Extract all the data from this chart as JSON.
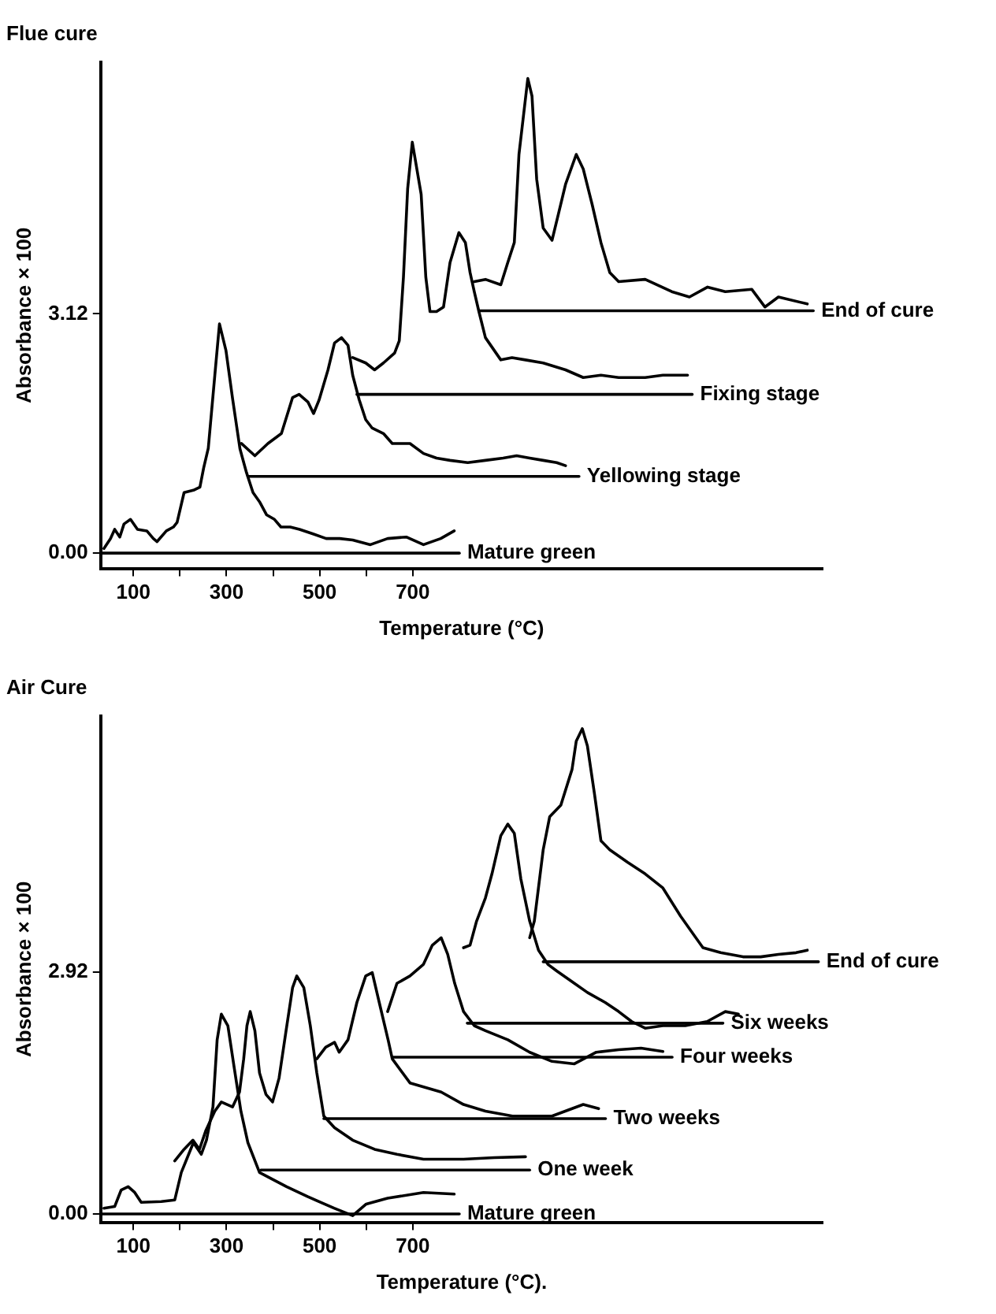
{
  "chart_data": [
    {
      "type": "line",
      "title": "Flue cure",
      "xlabel": "Temperature (°C)",
      "ylabel": "Absorbance × 100",
      "xlim": [
        30,
        1580
      ],
      "xticks": [
        100,
        {
          "value": 200,
          "label": null
        },
        300,
        {
          "value": 400,
          "label": null
        },
        500,
        {
          "value": 600,
          "label": null
        },
        700
      ],
      "ylim": [
        -0.2,
        6.4
      ],
      "yticks": [
        {
          "value": 0,
          "label": "0.00"
        },
        3.12
      ],
      "series": [
        {
          "color": "#000000",
          "x": [
            37,
            51,
            60,
            71,
            80,
            94,
            109,
            129,
            143,
            151,
            171,
            186,
            194,
            209,
            229,
            243,
            251,
            261,
            275,
            285,
            299,
            313,
            329,
            343,
            357,
            371,
            386,
            403,
            417,
            437,
            457,
            486,
            514,
            543,
            571,
            609,
            646,
            686,
            723,
            760,
            789
          ],
          "values": [
            0.06,
            0.19,
            0.31,
            0.21,
            0.38,
            0.44,
            0.31,
            0.29,
            0.19,
            0.15,
            0.29,
            0.34,
            0.4,
            0.79,
            0.82,
            0.86,
            1.11,
            1.37,
            2.32,
            2.99,
            2.64,
            2.02,
            1.36,
            1.05,
            0.79,
            0.67,
            0.5,
            0.44,
            0.34,
            0.34,
            0.31,
            0.25,
            0.19,
            0.19,
            0.17,
            0.11,
            0.19,
            0.21,
            0.11,
            0.19,
            0.29
          ]
        },
        {
          "color": "#000000",
          "x": [
            332,
            361,
            389,
            418,
            442,
            456,
            475,
            487,
            499,
            518,
            532,
            547,
            561,
            571,
            585,
            599,
            613,
            637,
            656,
            694,
            723,
            751,
            780,
            818,
            856,
            894,
            923,
            951,
            980,
            1009,
            1028
          ],
          "values": [
            1.43,
            1.27,
            1.43,
            1.56,
            2.03,
            2.07,
            1.97,
            1.82,
            2.0,
            2.39,
            2.74,
            2.81,
            2.71,
            2.32,
            2.0,
            1.74,
            1.63,
            1.56,
            1.43,
            1.43,
            1.3,
            1.24,
            1.21,
            1.18,
            1.21,
            1.24,
            1.27,
            1.24,
            1.21,
            1.18,
            1.14
          ]
        },
        {
          "color": "#000000",
          "x": [
            571,
            599,
            618,
            637,
            661,
            671,
            680,
            689,
            699,
            718,
            728,
            737,
            751,
            766,
            780,
            799,
            813,
            823,
            832,
            842,
            856,
            889,
            913,
            942,
            980,
            1028,
            1066,
            1104,
            1142,
            1199,
            1237,
            1290
          ],
          "values": [
            2.55,
            2.48,
            2.39,
            2.48,
            2.61,
            2.77,
            3.6,
            4.75,
            5.36,
            4.68,
            3.6,
            3.15,
            3.15,
            3.21,
            3.79,
            4.18,
            4.05,
            3.66,
            3.41,
            3.15,
            2.81,
            2.52,
            2.55,
            2.52,
            2.48,
            2.39,
            2.29,
            2.32,
            2.29,
            2.29,
            2.32,
            2.32
          ]
        },
        {
          "color": "#000000",
          "x": [
            832,
            856,
            889,
            904,
            918,
            928,
            947,
            956,
            966,
            980,
            999,
            1013,
            1028,
            1051,
            1066,
            1085,
            1104,
            1123,
            1142,
            1199,
            1256,
            1294,
            1333,
            1371,
            1428,
            1456,
            1485,
            1547
          ],
          "values": [
            3.54,
            3.57,
            3.5,
            3.79,
            4.05,
            5.2,
            6.19,
            5.96,
            4.88,
            4.24,
            4.08,
            4.43,
            4.81,
            5.2,
            5.01,
            4.55,
            4.05,
            3.66,
            3.54,
            3.57,
            3.41,
            3.34,
            3.47,
            3.41,
            3.44,
            3.21,
            3.34,
            3.25
          ]
        },
        {
          "name": "Mature green",
          "color": "#000000",
          "x": [
            30,
            800
          ],
          "values": [
            0,
            0
          ]
        },
        {
          "name": "Yellowing stage",
          "color": "#000000",
          "x": [
            346,
            1057
          ],
          "values": [
            1.0,
            1.0
          ]
        },
        {
          "name": "Fixing stage",
          "color": "#000000",
          "x": [
            580,
            1300
          ],
          "values": [
            2.07,
            2.07
          ]
        },
        {
          "name": "End of cure",
          "color": "#000000",
          "x": [
            843,
            1560
          ],
          "values": [
            3.16,
            3.16
          ]
        }
      ]
    },
    {
      "type": "line",
      "title": "Air Cure",
      "xlabel": "Temperature (°C).",
      "ylabel": "Absorbance × 100",
      "xlim": [
        30,
        1580
      ],
      "xticks": [
        100,
        {
          "value": 200,
          "label": null
        },
        300,
        {
          "value": 400,
          "label": null
        },
        500,
        {
          "value": 600,
          "label": null
        },
        700
      ],
      "ylim": [
        -0.1,
        6.0
      ],
      "yticks": [
        {
          "value": 0,
          "label": "0.00"
        },
        2.92
      ],
      "series": [
        {
          "color": "#000000",
          "x": [
            37,
            60,
            74,
            89,
            103,
            117,
            160,
            189,
            203,
            229,
            246,
            257,
            271,
            280,
            289,
            303,
            317,
            331,
            346,
            371,
            429,
            474,
            531,
            571,
            600,
            646,
            723,
            789
          ],
          "values": [
            0.07,
            0.09,
            0.29,
            0.33,
            0.26,
            0.14,
            0.15,
            0.17,
            0.5,
            0.86,
            0.72,
            0.89,
            1.29,
            2.1,
            2.41,
            2.27,
            1.75,
            1.24,
            0.86,
            0.5,
            0.33,
            0.21,
            0.07,
            -0.02,
            0.12,
            0.19,
            0.26,
            0.24
          ]
        },
        {
          "color": "#000000",
          "x": [
            189,
            209,
            228,
            242,
            256,
            275,
            289,
            313,
            328,
            337,
            344,
            351,
            361,
            371,
            385,
            399,
            413,
            428,
            442,
            451,
            466,
            480,
            494,
            509,
            532,
            571,
            618,
            666,
            723,
            809,
            875,
            942
          ],
          "values": [
            0.64,
            0.78,
            0.89,
            0.78,
            1.01,
            1.24,
            1.35,
            1.29,
            1.47,
            1.87,
            2.27,
            2.44,
            2.21,
            1.7,
            1.44,
            1.35,
            1.64,
            2.21,
            2.73,
            2.87,
            2.73,
            2.27,
            1.7,
            1.18,
            1.04,
            0.89,
            0.78,
            0.72,
            0.66,
            0.66,
            0.68,
            0.69
          ]
        },
        {
          "color": "#000000",
          "x": [
            494,
            513,
            532,
            542,
            561,
            580,
            599,
            613,
            628,
            647,
            656,
            694,
            761,
            809,
            856,
            914,
            999,
            1066,
            1099
          ],
          "values": [
            1.87,
            2.01,
            2.07,
            1.95,
            2.1,
            2.55,
            2.87,
            2.91,
            2.55,
            2.1,
            1.87,
            1.58,
            1.47,
            1.32,
            1.24,
            1.18,
            1.18,
            1.32,
            1.27
          ]
        },
        {
          "color": "#000000",
          "x": [
            646,
            666,
            694,
            723,
            742,
            761,
            775,
            790,
            809,
            832,
            856,
            904,
            951,
            999,
            1047,
            1094,
            1142,
            1190,
            1237
          ],
          "values": [
            2.44,
            2.78,
            2.87,
            3.01,
            3.24,
            3.33,
            3.13,
            2.78,
            2.44,
            2.27,
            2.21,
            2.1,
            1.95,
            1.84,
            1.81,
            1.95,
            1.98,
            2.0,
            1.96
          ]
        },
        {
          "color": "#000000",
          "x": [
            809,
            823,
            837,
            856,
            870,
            889,
            904,
            918,
            932,
            951,
            970,
            990,
            1009,
            1047,
            1075,
            1113,
            1142,
            1170,
            1199,
            1237,
            1285,
            1332,
            1371,
            1399
          ],
          "values": [
            3.21,
            3.24,
            3.53,
            3.81,
            4.1,
            4.56,
            4.7,
            4.59,
            4.04,
            3.53,
            3.18,
            3.01,
            2.93,
            2.78,
            2.67,
            2.55,
            2.44,
            2.32,
            2.24,
            2.27,
            2.27,
            2.32,
            2.44,
            2.41
          ]
        },
        {
          "color": "#000000",
          "x": [
            951,
            961,
            980,
            994,
            1018,
            1042,
            1051,
            1064,
            1075,
            1090,
            1104,
            1123,
            1161,
            1199,
            1237,
            1275,
            1304,
            1323,
            1361,
            1409,
            1447,
            1485,
            1523,
            1547
          ],
          "values": [
            3.33,
            3.53,
            4.39,
            4.79,
            4.93,
            5.36,
            5.7,
            5.85,
            5.64,
            5.07,
            4.5,
            4.39,
            4.24,
            4.1,
            3.93,
            3.59,
            3.36,
            3.21,
            3.15,
            3.1,
            3.1,
            3.13,
            3.15,
            3.18
          ]
        },
        {
          "name": "Mature green",
          "color": "#000000",
          "x": [
            30,
            800
          ],
          "values": [
            0,
            0
          ]
        },
        {
          "name": "One week",
          "color": "#000000",
          "x": [
            374,
            951
          ],
          "values": [
            0.53,
            0.53
          ]
        },
        {
          "name": "Two weeks",
          "color": "#000000",
          "x": [
            509,
            1114
          ],
          "values": [
            1.15,
            1.15
          ]
        },
        {
          "name": "Four weeks",
          "color": "#000000",
          "x": [
            657,
            1257
          ],
          "values": [
            1.89,
            1.89
          ]
        },
        {
          "name": "Six weeks",
          "color": "#000000",
          "x": [
            817,
            1366
          ],
          "values": [
            2.3,
            2.3
          ]
        },
        {
          "name": "End of cure",
          "color": "#000000",
          "x": [
            980,
            1571
          ],
          "values": [
            3.04,
            3.04
          ]
        }
      ]
    }
  ]
}
